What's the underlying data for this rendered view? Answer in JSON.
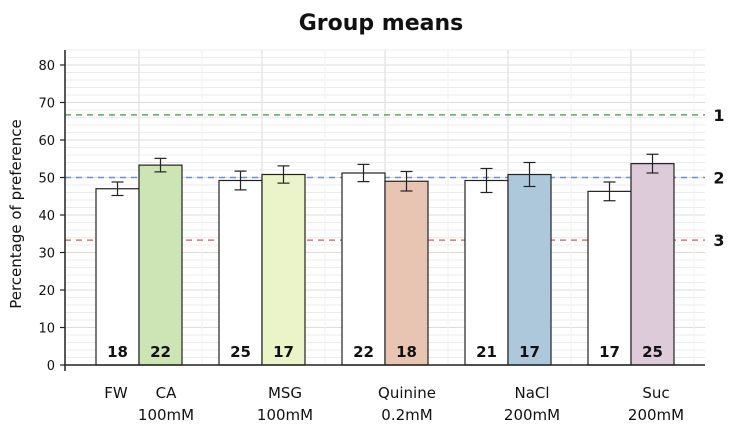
{
  "chart_data": {
    "type": "bar",
    "title": "Group means",
    "ylabel": "Percentage of preference",
    "xlabel": "",
    "ylim": [
      0,
      84
    ],
    "yticks": [
      0,
      10,
      20,
      30,
      40,
      50,
      60,
      70,
      80
    ],
    "grid": "horizontal minor lines every 2 units",
    "groups": [
      {
        "labels": [
          "FW",
          "CA\n100mM"
        ],
        "bars": [
          {
            "value": 47.0,
            "error": 1.8,
            "n": "18",
            "color": "#ffffff"
          },
          {
            "value": 53.3,
            "error": 1.8,
            "n": "22",
            "color": "#cde4b4"
          }
        ]
      },
      {
        "labels": [
          "MSG\n100mM"
        ],
        "bars": [
          {
            "value": 49.2,
            "error": 2.5,
            "n": "25",
            "color": "#ffffff"
          },
          {
            "value": 50.8,
            "error": 2.3,
            "n": "17",
            "color": "#ebf3c9"
          }
        ]
      },
      {
        "labels": [
          "Quinine\n0.2mM"
        ],
        "bars": [
          {
            "value": 51.2,
            "error": 2.3,
            "n": "22",
            "color": "#ffffff"
          },
          {
            "value": 49.0,
            "error": 2.6,
            "n": "18",
            "color": "#e8c4b3"
          }
        ]
      },
      {
        "labels": [
          "NaCl\n200mM"
        ],
        "bars": [
          {
            "value": 49.2,
            "error": 3.2,
            "n": "21",
            "color": "#ffffff"
          },
          {
            "value": 50.8,
            "error": 3.2,
            "n": "17",
            "color": "#aec8db"
          }
        ]
      },
      {
        "labels": [
          "Suc\n200mM"
        ],
        "bars": [
          {
            "value": 46.3,
            "error": 2.5,
            "n": "17",
            "color": "#ffffff"
          },
          {
            "value": 53.7,
            "error": 2.5,
            "n": "25",
            "color": "#ddcbda"
          }
        ]
      }
    ],
    "reference_lines": [
      {
        "label": "1",
        "value": 66.7,
        "color": "#5aaa55"
      },
      {
        "label": "2",
        "value": 50.0,
        "color": "#6d8fcf"
      },
      {
        "label": "3",
        "value": 33.3,
        "color": "#e0706e"
      }
    ]
  }
}
